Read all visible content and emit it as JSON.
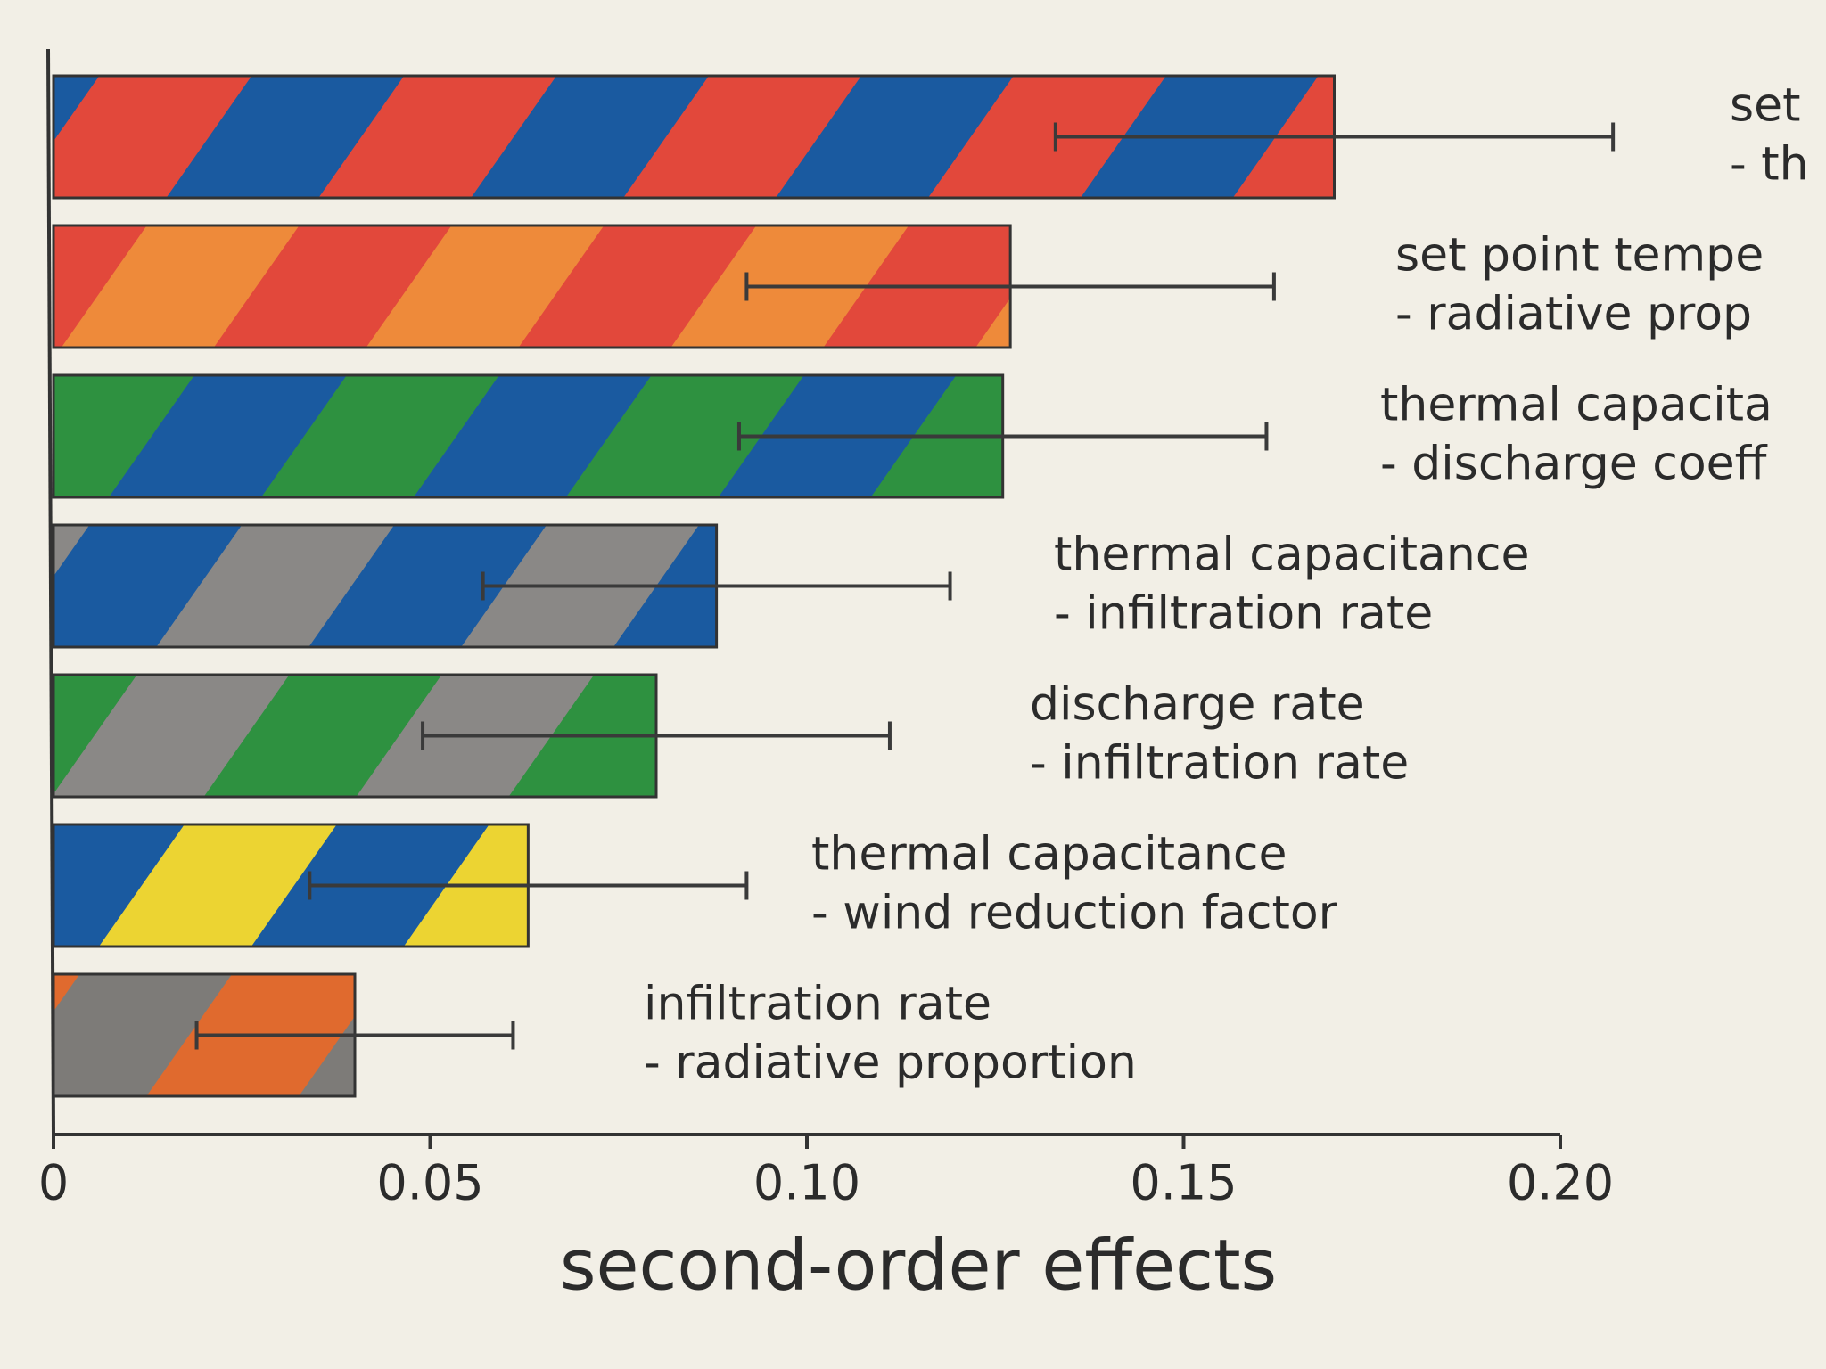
{
  "chart_data": {
    "type": "bar",
    "orientation": "horizontal",
    "categories": [
      [
        "set",
        "- th"
      ],
      [
        "set point tempe",
        "- radiative prop"
      ],
      [
        "thermal capacita",
        "- discharge coeff"
      ],
      [
        "thermal capacitance",
        "- infiltration rate"
      ],
      [
        "discharge rate",
        "- infiltration rate"
      ],
      [
        "thermal capacitance",
        "- wind reduction factor"
      ],
      [
        "infiltration rate",
        "- radiative proportion"
      ]
    ],
    "values": [
      0.17,
      0.127,
      0.126,
      0.088,
      0.08,
      0.063,
      0.04
    ],
    "errors": [
      0.037,
      0.035,
      0.035,
      0.031,
      0.031,
      0.029,
      0.021
    ],
    "colors": [
      [
        "#1a5aa0",
        "#e2483b"
      ],
      [
        "#ee8a3a",
        "#e2483b"
      ],
      [
        "#2e9140",
        "#1a5aa0"
      ],
      [
        "#8a8886",
        "#1a5aa0"
      ],
      [
        "#8a8886",
        "#2e9140"
      ],
      [
        "#1a5aa0",
        "#ecd432"
      ],
      [
        "#e06a2e",
        "#7d7b78"
      ]
    ],
    "xlabel": "second-order effects",
    "xlim": [
      0,
      0.2
    ],
    "xticks": [
      0,
      0.05,
      {
        "value": 0.1,
        "label": "0.10"
      },
      0.15,
      {
        "value": 0.2,
        "label": "0.20"
      }
    ]
  }
}
